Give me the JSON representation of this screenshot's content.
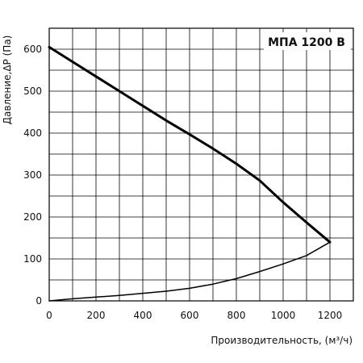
{
  "chart_data": {
    "type": "line",
    "title": "МПА 1200 В",
    "xlabel": "Производительность, (м³/ч)",
    "ylabel": "Давление,ΔP (Па)",
    "xlim": [
      0,
      1300
    ],
    "ylim": [
      0,
      650
    ],
    "grid": true,
    "x_ticks": [
      "0",
      "200",
      "400",
      "600",
      "800",
      "1000",
      "1200"
    ],
    "y_ticks": [
      "0",
      "100",
      "200",
      "300",
      "400",
      "500",
      "600"
    ],
    "series": [
      {
        "name": "",
        "style": "thick",
        "x": [
          0,
          100,
          200,
          300,
          400,
          500,
          600,
          700,
          800,
          900,
          1000,
          1100,
          1200
        ],
        "values": [
          605,
          570,
          535,
          500,
          465,
          430,
          397,
          363,
          327,
          287,
          235,
          187,
          140
        ]
      },
      {
        "name": "",
        "style": "thin",
        "x": [
          0,
          100,
          200,
          300,
          400,
          500,
          600,
          700,
          800,
          900,
          1000,
          1100,
          1200
        ],
        "values": [
          0,
          5,
          9,
          13,
          18,
          23,
          30,
          40,
          53,
          70,
          88,
          108,
          140
        ]
      }
    ]
  }
}
